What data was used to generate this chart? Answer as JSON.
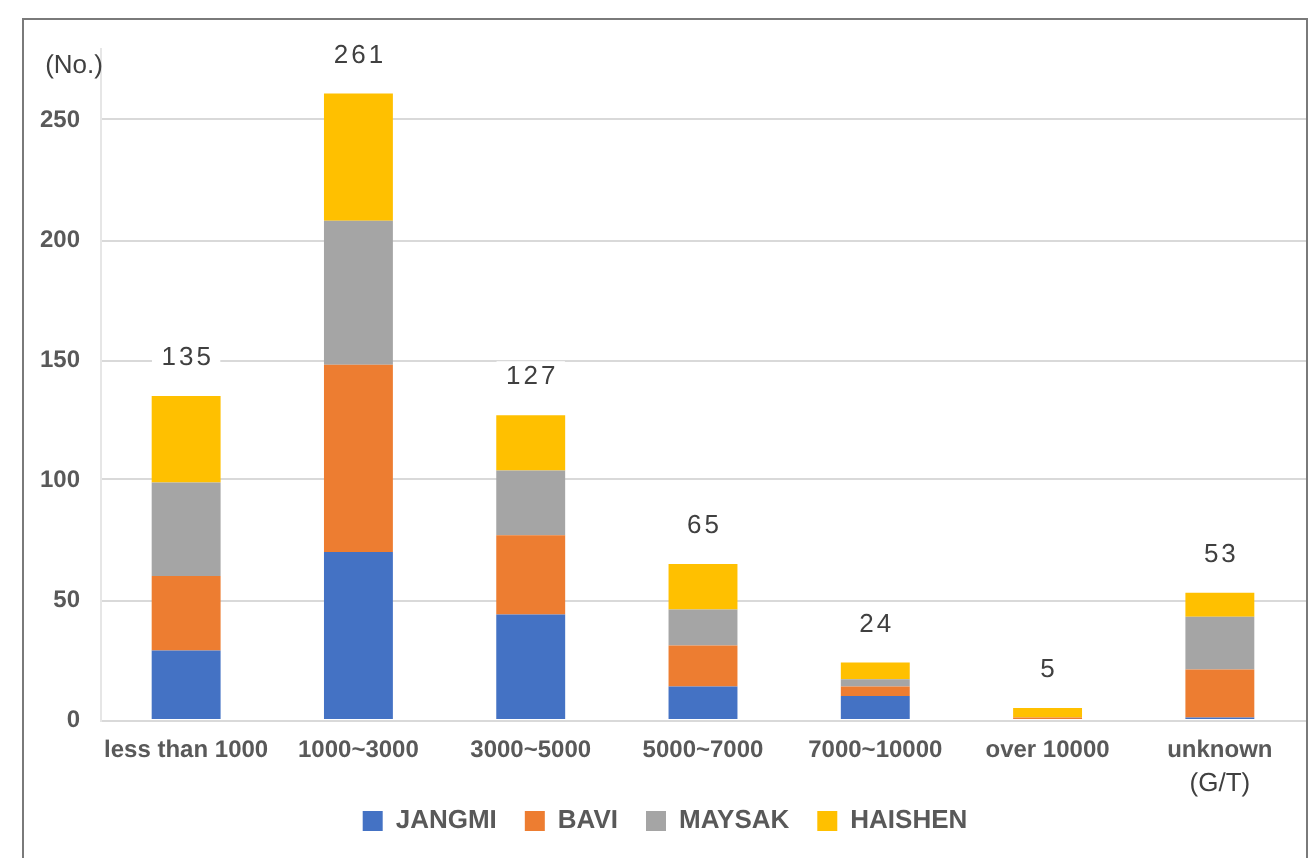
{
  "chart_data": {
    "type": "bar",
    "stacked": true,
    "categories": [
      "less than 1000",
      "1000~3000",
      "3000~5000",
      "5000~7000",
      "7000~10000",
      "over 10000",
      "unknown"
    ],
    "series": [
      {
        "name": "JANGMI",
        "color": "#4472c4",
        "values": [
          29,
          70,
          44,
          14,
          10,
          0,
          1
        ]
      },
      {
        "name": "BAVI",
        "color": "#ed7d31",
        "values": [
          31,
          78,
          33,
          17,
          4,
          1,
          20
        ]
      },
      {
        "name": "MAYSAK",
        "color": "#a5a5a5",
        "values": [
          39,
          60,
          27,
          15,
          3,
          0,
          22
        ]
      },
      {
        "name": "HAISHEN",
        "color": "#ffc000",
        "values": [
          36,
          53,
          23,
          19,
          7,
          4,
          10
        ]
      }
    ],
    "totals": [
      "135",
      "261",
      "127",
      "65",
      "24",
      "5",
      "53"
    ],
    "ylim": [
      0,
      280
    ],
    "yticks": [
      0,
      50,
      100,
      150,
      200,
      250
    ],
    "ylabel": "(No.)",
    "xlabel": "(G/T)",
    "grid": "y",
    "legend": "bottom"
  }
}
